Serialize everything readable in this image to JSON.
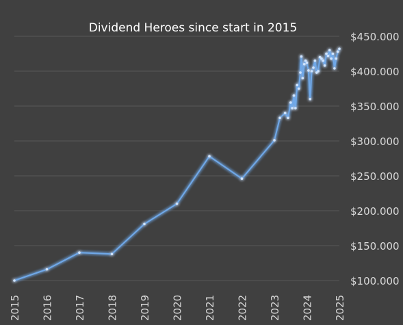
{
  "chart_data": {
    "type": "line",
    "title": "Dividend Heroes since start in 2015",
    "xlabel": "",
    "ylabel": "",
    "x_ticks": [
      "2015",
      "2016",
      "2017",
      "2018",
      "2019",
      "2020",
      "2021",
      "2022",
      "2023",
      "2024",
      "2025"
    ],
    "y_ticks": [
      "$100.000",
      "$150.000",
      "$200.000",
      "$250.000",
      "$300.000",
      "$350.000",
      "$400.000",
      "$450.000"
    ],
    "xlim": [
      2015,
      2025
    ],
    "ylim": [
      100000,
      450000
    ],
    "grid": true,
    "line_color": "#6fa8e8",
    "background": "#404040",
    "series": [
      {
        "x": [
          2015.0,
          2016.0,
          2017.0,
          2018.0,
          2019.0,
          2020.0,
          2021.0,
          2022.0,
          2023.0,
          2023.17,
          2023.33,
          2023.42,
          2023.5,
          2023.55,
          2023.6,
          2023.65,
          2023.7,
          2023.75,
          2023.8,
          2023.83,
          2023.87,
          2023.92,
          2023.96,
          2024.0,
          2024.05,
          2024.1,
          2024.15,
          2024.2,
          2024.25,
          2024.3,
          2024.35,
          2024.4,
          2024.45,
          2024.5,
          2024.55,
          2024.6,
          2024.65,
          2024.7,
          2024.75,
          2024.8,
          2024.85,
          2024.9,
          2024.95,
          2025.0
        ],
        "y": [
          100000,
          116000,
          140000,
          138000,
          181000,
          210000,
          278000,
          246000,
          301000,
          333000,
          340000,
          333000,
          355000,
          347000,
          365000,
          347000,
          380000,
          375000,
          398000,
          421000,
          390000,
          410000,
          415000,
          412000,
          401000,
          360000,
          400000,
          405000,
          415000,
          398000,
          400000,
          420000,
          418000,
          415000,
          408000,
          425000,
          422000,
          430000,
          418000,
          425000,
          404000,
          418000,
          428000,
          432000
        ]
      }
    ]
  }
}
